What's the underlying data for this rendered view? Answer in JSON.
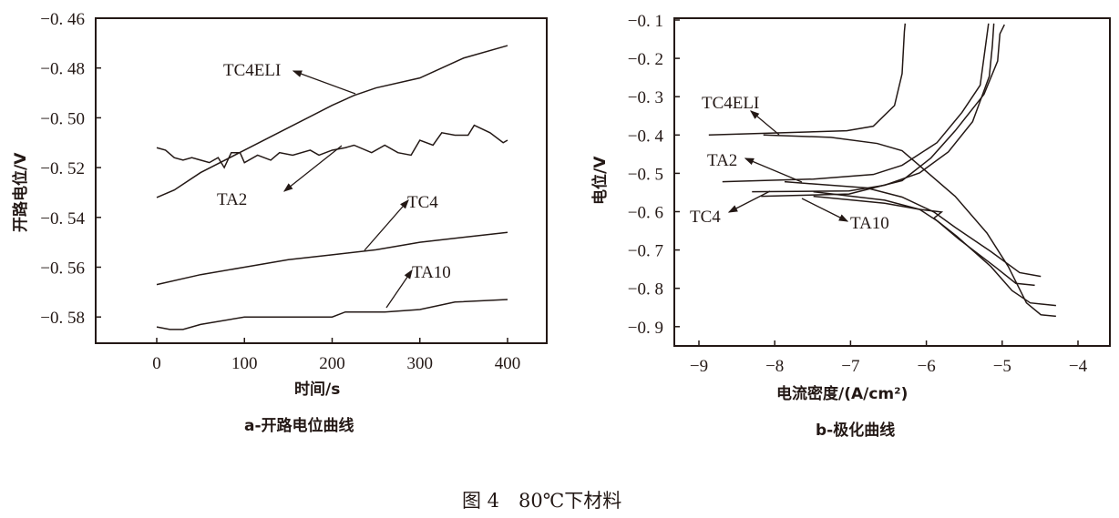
{
  "caption": "图 4　80℃下材料",
  "chart_data": [
    {
      "type": "line",
      "subtitle": "a-开路电位曲线",
      "xlabel": "时间/s",
      "ylabel": "开路电位/V",
      "xlim": [
        -70,
        440
      ],
      "ylim": [
        -0.593,
        -0.46
      ],
      "xticks": [
        0,
        100,
        200,
        300,
        400
      ],
      "xtick_labels": [
        "0",
        "100",
        "200",
        "300",
        "400"
      ],
      "yticks": [
        -0.46,
        -0.48,
        -0.5,
        -0.52,
        -0.54,
        -0.56,
        -0.58
      ],
      "ytick_labels": [
        "−0. 46",
        "−0. 48",
        "−0. 50",
        "−0. 52",
        "−0. 54",
        "−0. 56",
        "−0. 58"
      ],
      "grid": false,
      "series": [
        {
          "name": "TC4ELI",
          "x": [
            0,
            20,
            50,
            100,
            150,
            200,
            225,
            250,
            300,
            350,
            400
          ],
          "y": [
            -0.532,
            -0.529,
            -0.522,
            -0.513,
            -0.504,
            -0.495,
            -0.491,
            -0.488,
            -0.484,
            -0.476,
            -0.471
          ]
        },
        {
          "name": "TA2",
          "x": [
            0,
            10,
            20,
            30,
            40,
            50,
            60,
            70,
            77,
            85,
            95,
            100,
            115,
            130,
            140,
            155,
            175,
            185,
            200,
            215,
            225,
            245,
            260,
            275,
            290,
            300,
            315,
            325,
            340,
            355,
            362,
            380,
            395,
            400
          ],
          "y": [
            -0.512,
            -0.513,
            -0.516,
            -0.517,
            -0.516,
            -0.517,
            -0.518,
            -0.516,
            -0.52,
            -0.514,
            -0.514,
            -0.518,
            -0.515,
            -0.517,
            -0.514,
            -0.515,
            -0.513,
            -0.515,
            -0.513,
            -0.512,
            -0.511,
            -0.514,
            -0.511,
            -0.514,
            -0.515,
            -0.509,
            -0.511,
            -0.506,
            -0.507,
            -0.507,
            -0.503,
            -0.506,
            -0.51,
            -0.509
          ]
        },
        {
          "name": "TC4",
          "x": [
            0,
            50,
            100,
            150,
            200,
            250,
            300,
            350,
            400
          ],
          "y": [
            -0.567,
            -0.563,
            -0.56,
            -0.557,
            -0.555,
            -0.553,
            -0.55,
            -0.548,
            -0.546
          ]
        },
        {
          "name": "TA10",
          "x": [
            0,
            15,
            30,
            50,
            100,
            150,
            200,
            215,
            260,
            300,
            340,
            400
          ],
          "y": [
            -0.584,
            -0.585,
            -0.585,
            -0.583,
            -0.58,
            -0.58,
            -0.58,
            -0.578,
            -0.578,
            -0.577,
            -0.574,
            -0.573
          ]
        }
      ]
    },
    {
      "type": "line",
      "subtitle": "b-极化曲线",
      "xlabel": "电流密度/(A/cm²)",
      "ylabel": "电位/V",
      "xlim": [
        -9.32,
        -3.5
      ],
      "ylim": [
        -0.95,
        -0.1
      ],
      "xticks": [
        -9,
        -8,
        -7,
        -6,
        -5,
        -4
      ],
      "xtick_labels": [
        "−9",
        "−8",
        "−7",
        "−6",
        "−5",
        "−4"
      ],
      "yticks": [
        -0.1,
        -0.2,
        -0.3,
        -0.4,
        -0.5,
        -0.6,
        -0.7,
        -0.8,
        -0.9
      ],
      "ytick_labels": [
        "−0. 1",
        "−0. 2",
        "−0. 3",
        "−0. 4",
        "−0. 5",
        "−0. 6",
        "−0. 7",
        "−0. 8",
        "−0. 9"
      ],
      "grid": false,
      "series": [
        {
          "name": "TC4ELI",
          "branches": [
            {
              "x": [
                -8.87,
                -7.05,
                -6.7,
                -6.42,
                -6.32,
                -6.29,
                -6.28
              ],
              "y": [
                -0.4,
                -0.389,
                -0.377,
                -0.323,
                -0.24,
                -0.13,
                -0.109
              ]
            },
            {
              "x": [
                -8.15,
                -7.26,
                -6.65,
                -6.32,
                -6.09,
                -5.62,
                -5.2,
                -4.92,
                -4.68,
                -4.49,
                -4.29
              ],
              "y": [
                -0.4,
                -0.406,
                -0.422,
                -0.441,
                -0.48,
                -0.56,
                -0.656,
                -0.743,
                -0.838,
                -0.869,
                -0.873
              ]
            }
          ]
        },
        {
          "name": "TA2",
          "branches": [
            {
              "x": [
                -8.69,
                -7.49,
                -6.7,
                -6.32,
                -5.86,
                -5.53,
                -5.29,
                -5.22,
                -5.18
              ],
              "y": [
                -0.522,
                -0.515,
                -0.503,
                -0.479,
                -0.42,
                -0.341,
                -0.27,
                -0.168,
                -0.109
              ]
            },
            {
              "x": [
                -7.87,
                -6.79,
                -6.32,
                -5.9,
                -5.62,
                -5.15,
                -4.77,
                -4.49
              ],
              "y": [
                -0.522,
                -0.538,
                -0.562,
                -0.601,
                -0.641,
                -0.704,
                -0.759,
                -0.769
              ]
            }
          ]
        },
        {
          "name": "TC4",
          "branches": [
            {
              "x": [
                -8.3,
                -7.02,
                -6.55,
                -6.09,
                -5.71,
                -5.39,
                -5.17,
                -5.13,
                -5.11
              ],
              "y": [
                -0.548,
                -0.546,
                -0.531,
                -0.499,
                -0.444,
                -0.365,
                -0.247,
                -0.168,
                -0.109
              ]
            },
            {
              "x": [
                -7.49,
                -6.55,
                -6.09,
                -5.8,
                -5.9,
                -5.57,
                -5.1,
                -4.82,
                -4.57
              ],
              "y": [
                -0.548,
                -0.57,
                -0.594,
                -0.601,
                -0.617,
                -0.672,
                -0.743,
                -0.787,
                -0.792
              ]
            }
          ]
        },
        {
          "name": "TA10",
          "branches": [
            {
              "x": [
                -8.18,
                -7.02,
                -6.32,
                -5.94,
                -5.62,
                -5.24,
                -5.06,
                -5.03,
                -4.97
              ],
              "y": [
                -0.56,
                -0.554,
                -0.519,
                -0.46,
                -0.389,
                -0.294,
                -0.207,
                -0.136,
                -0.112
              ]
            },
            {
              "x": [
                -7.49,
                -6.55,
                -6.09,
                -5.85,
                -5.6,
                -5.15,
                -4.87,
                -4.63,
                -4.29
              ],
              "y": [
                -0.56,
                -0.578,
                -0.594,
                -0.625,
                -0.664,
                -0.743,
                -0.806,
                -0.838,
                -0.845
              ]
            }
          ]
        }
      ]
    }
  ]
}
